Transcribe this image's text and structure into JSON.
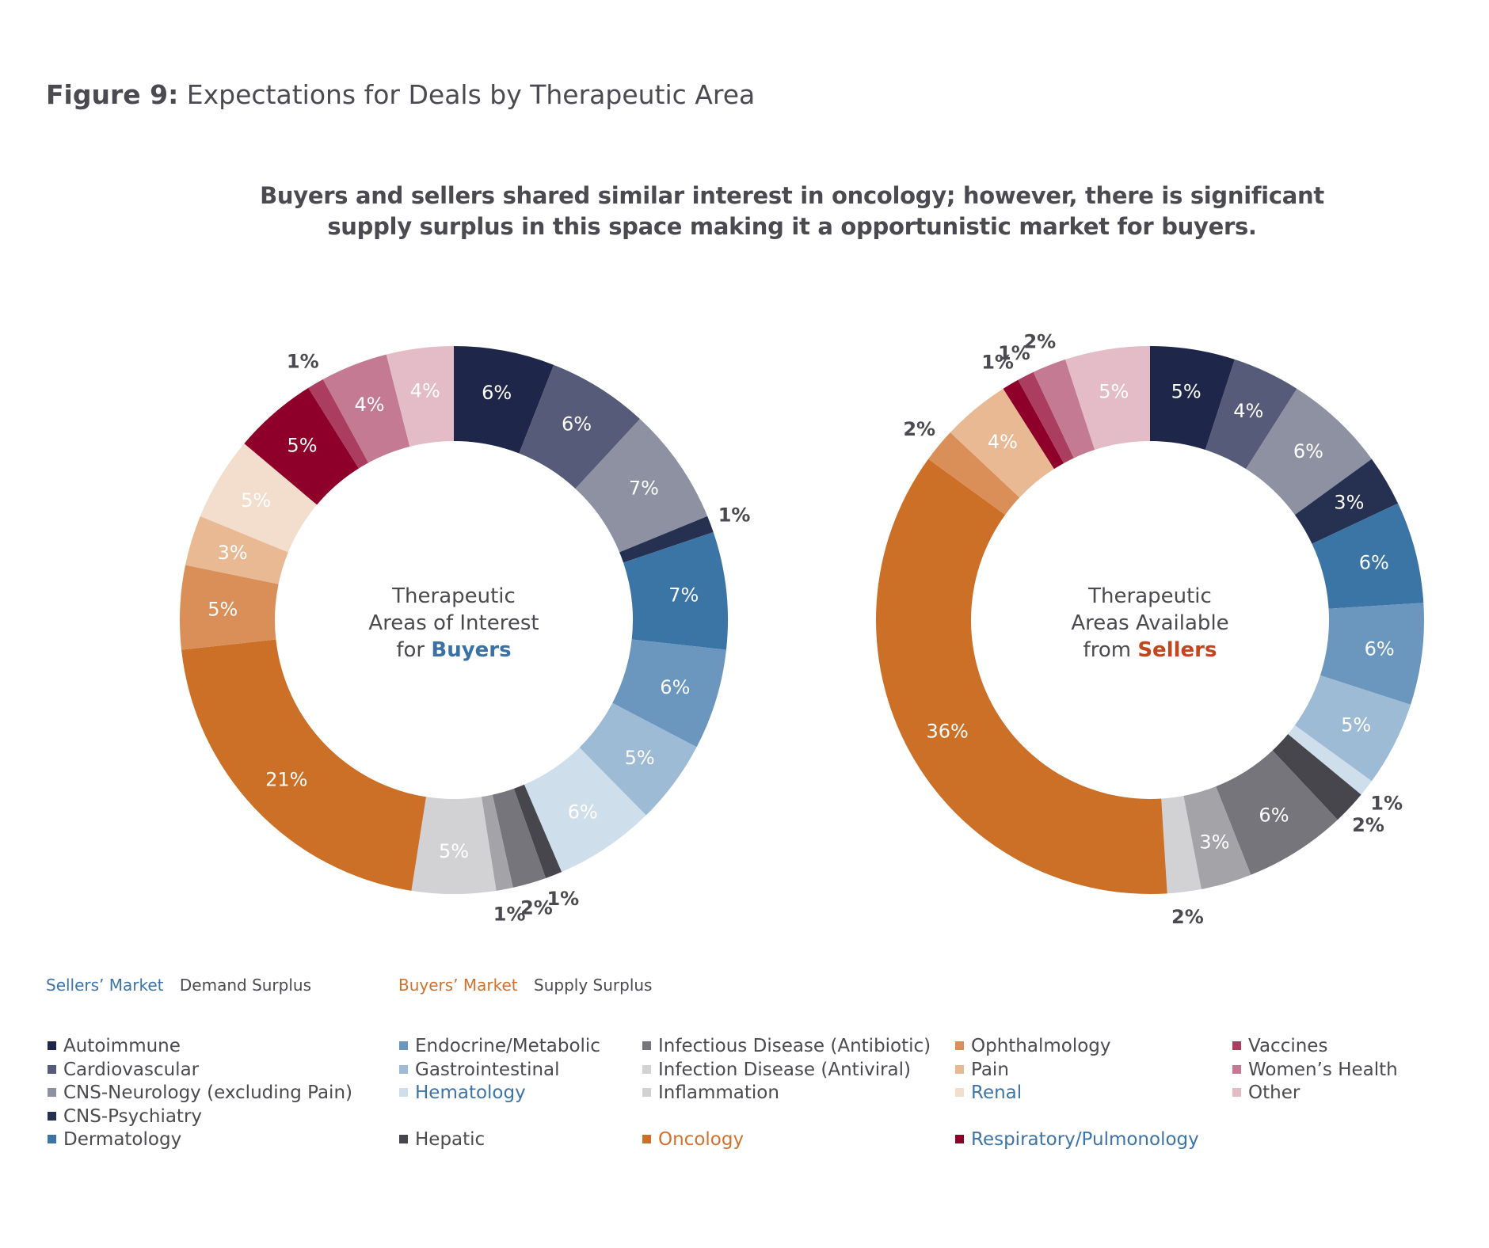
{
  "figure": {
    "label": "Figure 9:",
    "title": "Expectations for Deals by Therapeutic Area"
  },
  "subtitle_lines": [
    "Buyers and sellers shared similar interest in oncology; however, there is significant",
    "supply surplus in this space making it a opportunistic market for buyers."
  ],
  "market_key": {
    "sellers_label": "Sellers’ Market",
    "sellers_desc": "Demand Surplus",
    "buyers_label": "Buyers’ Market",
    "buyers_desc": "Supply Surplus",
    "sellers_color": "#3d74a8",
    "buyers_color": "#d0722e"
  },
  "chart_data": [
    {
      "type": "pie",
      "subtype": "donut",
      "title": "Therapeutic Areas of Interest for Buyers",
      "center_lines": [
        "Therapeutic",
        "Areas of Interest",
        "for "
      ],
      "center_emphasis": "Buyers",
      "center_emphasis_color": "#3a72a6",
      "categories": [
        "Autoimmune",
        "Cardiovascular",
        "CNS-Neurology (excluding Pain)",
        "CNS-Psychiatry",
        "Dermatology",
        "Endocrine/Metabolic",
        "Gastrointestinal",
        "Hematology",
        "Hepatic",
        "Infectious Disease (Antibiotic)",
        "Infection Disease (Antiviral)",
        "Inflammation",
        "Oncology",
        "Ophthalmology",
        "Pain",
        "Renal",
        "Respiratory/Pulmonology",
        "Vaccines",
        "Women’s Health",
        "Other"
      ],
      "values": [
        6,
        6,
        7,
        1,
        7,
        6,
        5,
        6,
        1,
        2,
        1,
        5,
        21,
        5,
        3,
        5,
        5,
        1,
        4,
        4
      ],
      "labels": [
        "6%",
        "6%",
        "7%",
        "1%",
        "7%",
        "6%",
        "5%",
        "6%",
        "1%",
        "2%",
        "1%",
        "5%",
        "21%",
        "5%",
        "3%",
        "5%",
        "5%",
        "1%",
        "4%",
        "4%"
      ],
      "outside_labels": [
        3,
        8,
        9,
        10,
        17
      ]
    },
    {
      "type": "pie",
      "subtype": "donut",
      "title": "Therapeutic Areas Available from Sellers",
      "center_lines": [
        "Therapeutic",
        "Areas Available",
        "from "
      ],
      "center_emphasis": "Sellers",
      "center_emphasis_color": "#c2461e",
      "categories": [
        "Autoimmune",
        "Cardiovascular",
        "CNS-Neurology (excluding Pain)",
        "CNS-Psychiatry",
        "Dermatology",
        "Endocrine/Metabolic",
        "Gastrointestinal",
        "Hematology",
        "Hepatic",
        "Infectious Disease (Antibiotic)",
        "Infection Disease (Antiviral)",
        "Inflammation",
        "Oncology",
        "Ophthalmology",
        "Pain",
        "Renal",
        "Respiratory/Pulmonology",
        "Vaccines",
        "Women’s Health",
        "Other"
      ],
      "values": [
        5,
        4,
        6,
        3,
        6,
        6,
        5,
        1,
        2,
        6,
        3,
        2,
        36,
        2,
        4,
        0,
        1,
        1,
        2,
        5
      ],
      "labels": [
        "5%",
        "4%",
        "6%",
        "3%",
        "6%",
        "6%",
        "5%",
        "1%",
        "2%",
        "6%",
        "3%",
        "2%",
        "36%",
        "2%",
        "4%",
        "",
        "1%",
        "1%",
        "2%",
        "5%"
      ],
      "outside_labels": [
        7,
        8,
        11,
        13,
        16,
        17,
        18
      ]
    }
  ],
  "colors": [
    "#1e2749",
    "#555b78",
    "#8e91a2",
    "#263152",
    "#3a75a6",
    "#6b97bf",
    "#9ebbd5",
    "#cfdeeb",
    "#47464d",
    "#75757b",
    "#a3a3a8",
    "#d2d2d4",
    "#cc6f27",
    "#db8f58",
    "#e8b993",
    "#f3ddcc",
    "#8e0029",
    "#ab3d61",
    "#c57a93",
    "#e3bcc8"
  ],
  "legend": [
    {
      "label": "Autoimmune",
      "color": "#1e2749",
      "text_color": "#4a4a50"
    },
    {
      "label": "Cardiovascular",
      "color": "#555b78",
      "text_color": "#4a4a50"
    },
    {
      "label": "CNS-Neurology (excluding Pain)",
      "color": "#8e91a2",
      "text_color": "#4a4a50"
    },
    {
      "label": "CNS-Psychiatry",
      "color": "#263152",
      "text_color": "#4a4a50"
    },
    {
      "label": "Dermatology",
      "color": "#3a75a6",
      "text_color": "#4a4a50"
    },
    {
      "label": "Endocrine/Metabolic",
      "color": "#6b97bf",
      "text_color": "#4a4a50"
    },
    {
      "label": "Gastrointestinal",
      "color": "#9ebbd5",
      "text_color": "#4a4a50"
    },
    {
      "label": "Hematology",
      "color": "#cfdeeb",
      "text_color": "#3d74a8"
    },
    {
      "label": "Hepatic",
      "color": "#47464d",
      "text_color": "#4a4a50"
    },
    {
      "label": "Infectious Disease (Antibiotic)",
      "color": "#75757b",
      "text_color": "#4a4a50"
    },
    {
      "label": "Infection Disease (Antiviral)",
      "color": "#d2d2d4",
      "text_color": "#4a4a50"
    },
    {
      "label": "Inflammation",
      "color": "#d2d2d4",
      "text_color": "#4a4a50"
    },
    {
      "label": "Oncology",
      "color": "#cc6f27",
      "text_color": "#d0722e"
    },
    {
      "label": "Ophthalmology",
      "color": "#db8f58",
      "text_color": "#4a4a50"
    },
    {
      "label": "Pain",
      "color": "#e8b993",
      "text_color": "#4a4a50"
    },
    {
      "label": "Renal",
      "color": "#f3ddcc",
      "text_color": "#3d74a8"
    },
    {
      "label": "Respiratory/Pulmonology",
      "color": "#8e0029",
      "text_color": "#3d74a8"
    },
    {
      "label": "Vaccines",
      "color": "#ab3d61",
      "text_color": "#4a4a50"
    },
    {
      "label": "Women’s Health",
      "color": "#c57a93",
      "text_color": "#4a4a50"
    },
    {
      "label": "Other",
      "color": "#e3bcc8",
      "text_color": "#4a4a50"
    }
  ]
}
